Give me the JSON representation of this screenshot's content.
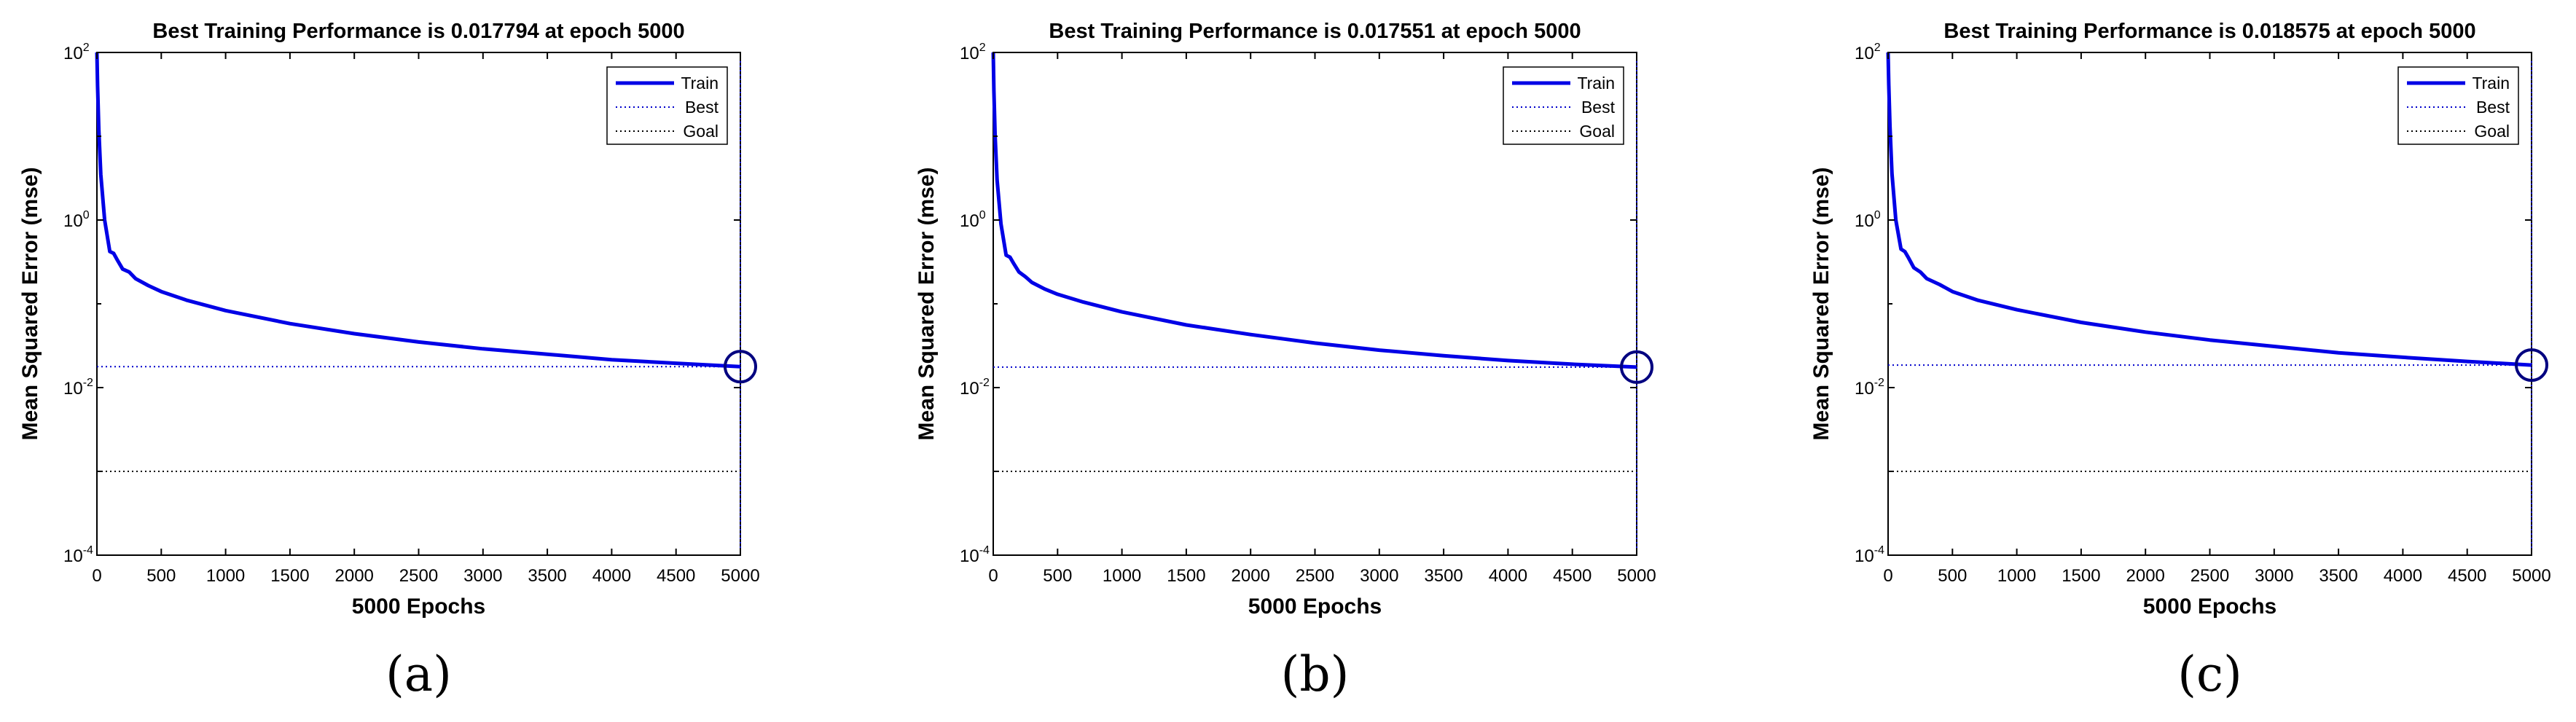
{
  "colors": {
    "train": "#0000e6",
    "best": "#0000cc",
    "goal": "#000000",
    "axis": "#000000"
  },
  "chart_data": [
    {
      "type": "line",
      "caption": "(a)",
      "title": "Best Training Performance is 0.017794 at epoch 5000",
      "xlabel": "5000 Epochs",
      "ylabel": "Mean Squared Error  (mse)",
      "xlim": [
        0,
        5000
      ],
      "ylim_log10": [
        -4,
        2
      ],
      "xticks": [
        0,
        500,
        1000,
        1500,
        2000,
        2500,
        3000,
        3500,
        4000,
        4500,
        5000
      ],
      "yticks": [
        {
          "base": "10",
          "exp": "2",
          "value": 100
        },
        {
          "base": "10",
          "exp": "0",
          "value": 1
        },
        {
          "base": "10",
          "exp": "-2",
          "value": 0.01
        },
        {
          "base": "10",
          "exp": "-4",
          "value": 0.0001
        }
      ],
      "legend": [
        "Train",
        "Best",
        "Goal"
      ],
      "best_mse": 0.017794,
      "best_epoch": 5000,
      "goal": 0.001,
      "series": {
        "name": "Train",
        "x": [
          0,
          5,
          15,
          30,
          60,
          100,
          130,
          160,
          200,
          250,
          300,
          400,
          500,
          700,
          1000,
          1500,
          2000,
          2500,
          3000,
          3500,
          4000,
          4500,
          5000
        ],
        "y": [
          100,
          40,
          12,
          3.5,
          1.0,
          0.42,
          0.4,
          0.33,
          0.26,
          0.24,
          0.2,
          0.165,
          0.14,
          0.11,
          0.083,
          0.058,
          0.044,
          0.035,
          0.029,
          0.025,
          0.0215,
          0.0195,
          0.017794
        ]
      }
    },
    {
      "type": "line",
      "caption": "(b)",
      "title": "Best Training Performance is 0.017551 at epoch 5000",
      "xlabel": "5000 Epochs",
      "ylabel": "Mean Squared Error  (mse)",
      "xlim": [
        0,
        5000
      ],
      "ylim_log10": [
        -4,
        2
      ],
      "xticks": [
        0,
        500,
        1000,
        1500,
        2000,
        2500,
        3000,
        3500,
        4000,
        4500,
        5000
      ],
      "yticks": [
        {
          "base": "10",
          "exp": "2",
          "value": 100
        },
        {
          "base": "10",
          "exp": "0",
          "value": 1
        },
        {
          "base": "10",
          "exp": "-2",
          "value": 0.01
        },
        {
          "base": "10",
          "exp": "-4",
          "value": 0.0001
        }
      ],
      "legend": [
        "Train",
        "Best",
        "Goal"
      ],
      "best_mse": 0.017551,
      "best_epoch": 5000,
      "goal": 0.001,
      "series": {
        "name": "Train",
        "x": [
          0,
          5,
          15,
          30,
          60,
          100,
          130,
          160,
          200,
          250,
          300,
          400,
          500,
          700,
          1000,
          1500,
          2000,
          2500,
          3000,
          3500,
          4000,
          4500,
          5000
        ],
        "y": [
          100,
          35,
          10,
          3.0,
          0.9,
          0.38,
          0.36,
          0.3,
          0.24,
          0.21,
          0.18,
          0.15,
          0.13,
          0.105,
          0.08,
          0.056,
          0.043,
          0.034,
          0.028,
          0.024,
          0.021,
          0.019,
          0.017551
        ]
      }
    },
    {
      "type": "line",
      "caption": "(c)",
      "title": "Best Training Performance is 0.018575 at epoch 5000",
      "xlabel": "5000 Epochs",
      "ylabel": "Mean Squared Error  (mse)",
      "xlim": [
        0,
        5000
      ],
      "ylim_log10": [
        -4,
        2
      ],
      "xticks": [
        0,
        500,
        1000,
        1500,
        2000,
        2500,
        3000,
        3500,
        4000,
        4500,
        5000
      ],
      "yticks": [
        {
          "base": "10",
          "exp": "2",
          "value": 100
        },
        {
          "base": "10",
          "exp": "0",
          "value": 1
        },
        {
          "base": "10",
          "exp": "-2",
          "value": 0.01
        },
        {
          "base": "10",
          "exp": "-4",
          "value": 0.0001
        }
      ],
      "legend": [
        "Train",
        "Best",
        "Goal"
      ],
      "best_mse": 0.018575,
      "best_epoch": 5000,
      "goal": 0.001,
      "series": {
        "name": "Train",
        "x": [
          0,
          5,
          15,
          30,
          60,
          100,
          130,
          160,
          200,
          250,
          300,
          400,
          500,
          700,
          1000,
          1500,
          2000,
          2500,
          3000,
          3500,
          4000,
          4500,
          5000
        ],
        "y": [
          100,
          42,
          13,
          3.6,
          1.0,
          0.45,
          0.42,
          0.35,
          0.27,
          0.24,
          0.2,
          0.17,
          0.14,
          0.11,
          0.085,
          0.06,
          0.046,
          0.037,
          0.031,
          0.026,
          0.023,
          0.0205,
          0.018575
        ]
      }
    }
  ]
}
